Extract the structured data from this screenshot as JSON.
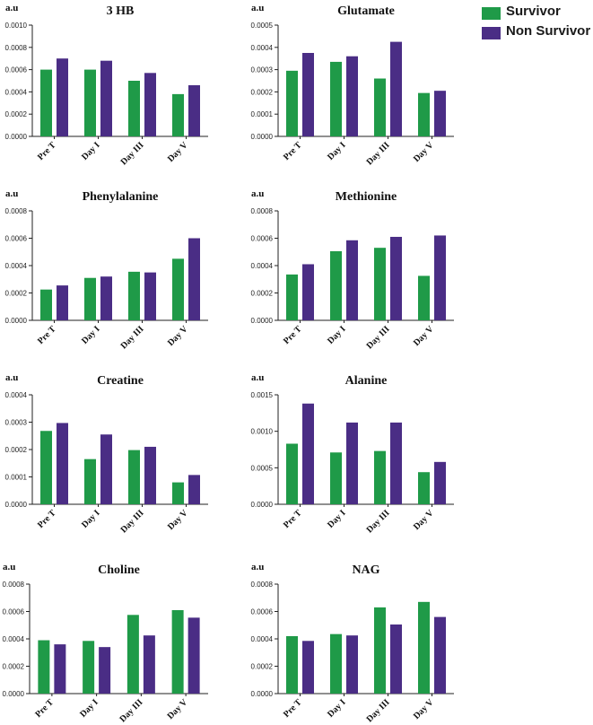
{
  "colors": {
    "survivor": "#1f9a48",
    "non_survivor": "#4a2d85",
    "axis": "#222222"
  },
  "legend": {
    "items": [
      {
        "label": "Survivor",
        "color": "#1f9a48"
      },
      {
        "label": "Non Survivor",
        "color": "#4a2d85"
      }
    ]
  },
  "chart_data": [
    {
      "type": "bar",
      "title": "3 HB",
      "ylabel": "a.u",
      "categories": [
        "Pre T",
        "Day I",
        "Day III",
        "Day V"
      ],
      "yticks": [
        "0.0000",
        "0.0002",
        "0.0004",
        "0.0006",
        "0.0008",
        "0.0010"
      ],
      "ylim": [
        0,
        0.001
      ],
      "series": [
        {
          "name": "Survivor",
          "values": [
            0.0006,
            0.0006,
            0.0005,
            0.00038
          ]
        },
        {
          "name": "Non Survivor",
          "values": [
            0.0007,
            0.00068,
            0.00057,
            0.00046
          ]
        }
      ]
    },
    {
      "type": "bar",
      "title": "Glutamate",
      "ylabel": "a.u",
      "categories": [
        "Pre T",
        "Day I",
        "Day III",
        "Day V"
      ],
      "yticks": [
        "0.0000",
        "0.0001",
        "0.0002",
        "0.0003",
        "0.0004",
        "0.0005"
      ],
      "ylim": [
        0,
        0.0005
      ],
      "series": [
        {
          "name": "Survivor",
          "values": [
            0.000295,
            0.000335,
            0.00026,
            0.000195
          ]
        },
        {
          "name": "Non Survivor",
          "values": [
            0.000375,
            0.00036,
            0.000425,
            0.000205
          ]
        }
      ]
    },
    {
      "type": "bar",
      "title": "Phenylalanine",
      "ylabel": "a.u",
      "categories": [
        "Pre T",
        "Day I",
        "Day III",
        "Day V"
      ],
      "yticks": [
        "0.0000",
        "0.0002",
        "0.0004",
        "0.0006",
        "0.0008"
      ],
      "ylim": [
        0,
        0.0008
      ],
      "series": [
        {
          "name": "Survivor",
          "values": [
            0.000225,
            0.00031,
            0.000355,
            0.00045
          ]
        },
        {
          "name": "Non Survivor",
          "values": [
            0.000255,
            0.00032,
            0.00035,
            0.0006
          ]
        }
      ]
    },
    {
      "type": "bar",
      "title": "Methionine",
      "ylabel": "a.u",
      "categories": [
        "Pre T",
        "Day I",
        "Day III",
        "Day V"
      ],
      "yticks": [
        "0.0000",
        "0.0002",
        "0.0004",
        "0.0006",
        "0.0008"
      ],
      "ylim": [
        0,
        0.0008
      ],
      "series": [
        {
          "name": "Survivor",
          "values": [
            0.000335,
            0.000505,
            0.00053,
            0.000325
          ]
        },
        {
          "name": "Non Survivor",
          "values": [
            0.00041,
            0.000585,
            0.00061,
            0.00062
          ]
        }
      ]
    },
    {
      "type": "bar",
      "title": "Creatine",
      "ylabel": "a.u",
      "categories": [
        "Pre T",
        "Day I",
        "Day III",
        "Day V"
      ],
      "yticks": [
        "0.0000",
        "0.0001",
        "0.0002",
        "0.0003",
        "0.0004"
      ],
      "ylim": [
        0,
        0.0004
      ],
      "series": [
        {
          "name": "Survivor",
          "values": [
            0.000268,
            0.000165,
            0.000198,
            8e-05
          ]
        },
        {
          "name": "Non Survivor",
          "values": [
            0.000297,
            0.000255,
            0.00021,
            0.000107
          ]
        }
      ]
    },
    {
      "type": "bar",
      "title": "Alanine",
      "ylabel": "a.u",
      "categories": [
        "Pre T",
        "Day I",
        "Day III",
        "Day V"
      ],
      "yticks": [
        "0.0000",
        "0.0005",
        "0.0010",
        "0.0015"
      ],
      "ylim": [
        0,
        0.0015
      ],
      "series": [
        {
          "name": "Survivor",
          "values": [
            0.00083,
            0.00071,
            0.00073,
            0.00044
          ]
        },
        {
          "name": "Non Survivor",
          "values": [
            0.00138,
            0.00112,
            0.00112,
            0.00058
          ]
        }
      ]
    },
    {
      "type": "bar",
      "title": "Choline",
      "ylabel": "a.u",
      "categories": [
        "Pre T",
        "Day I",
        "Day III",
        "Day V"
      ],
      "yticks": [
        "0.0000",
        "0.0002",
        "0.0004",
        "0.0006",
        "0.0008"
      ],
      "ylim": [
        0,
        0.0008
      ],
      "series": [
        {
          "name": "Survivor",
          "values": [
            0.00039,
            0.000385,
            0.000575,
            0.00061
          ]
        },
        {
          "name": "Non Survivor",
          "values": [
            0.00036,
            0.00034,
            0.000425,
            0.000555
          ]
        }
      ]
    },
    {
      "type": "bar",
      "title": "NAG",
      "ylabel": "a.u",
      "categories": [
        "Pre T",
        "Day I",
        "Day III",
        "Day V"
      ],
      "yticks": [
        "0.0000",
        "0.0002",
        "0.0004",
        "0.0006",
        "0.0008"
      ],
      "ylim": [
        0,
        0.0008
      ],
      "series": [
        {
          "name": "Survivor",
          "values": [
            0.00042,
            0.000435,
            0.00063,
            0.00067
          ]
        },
        {
          "name": "Non Survivor",
          "values": [
            0.000385,
            0.000425,
            0.000505,
            0.00056
          ]
        }
      ]
    }
  ]
}
